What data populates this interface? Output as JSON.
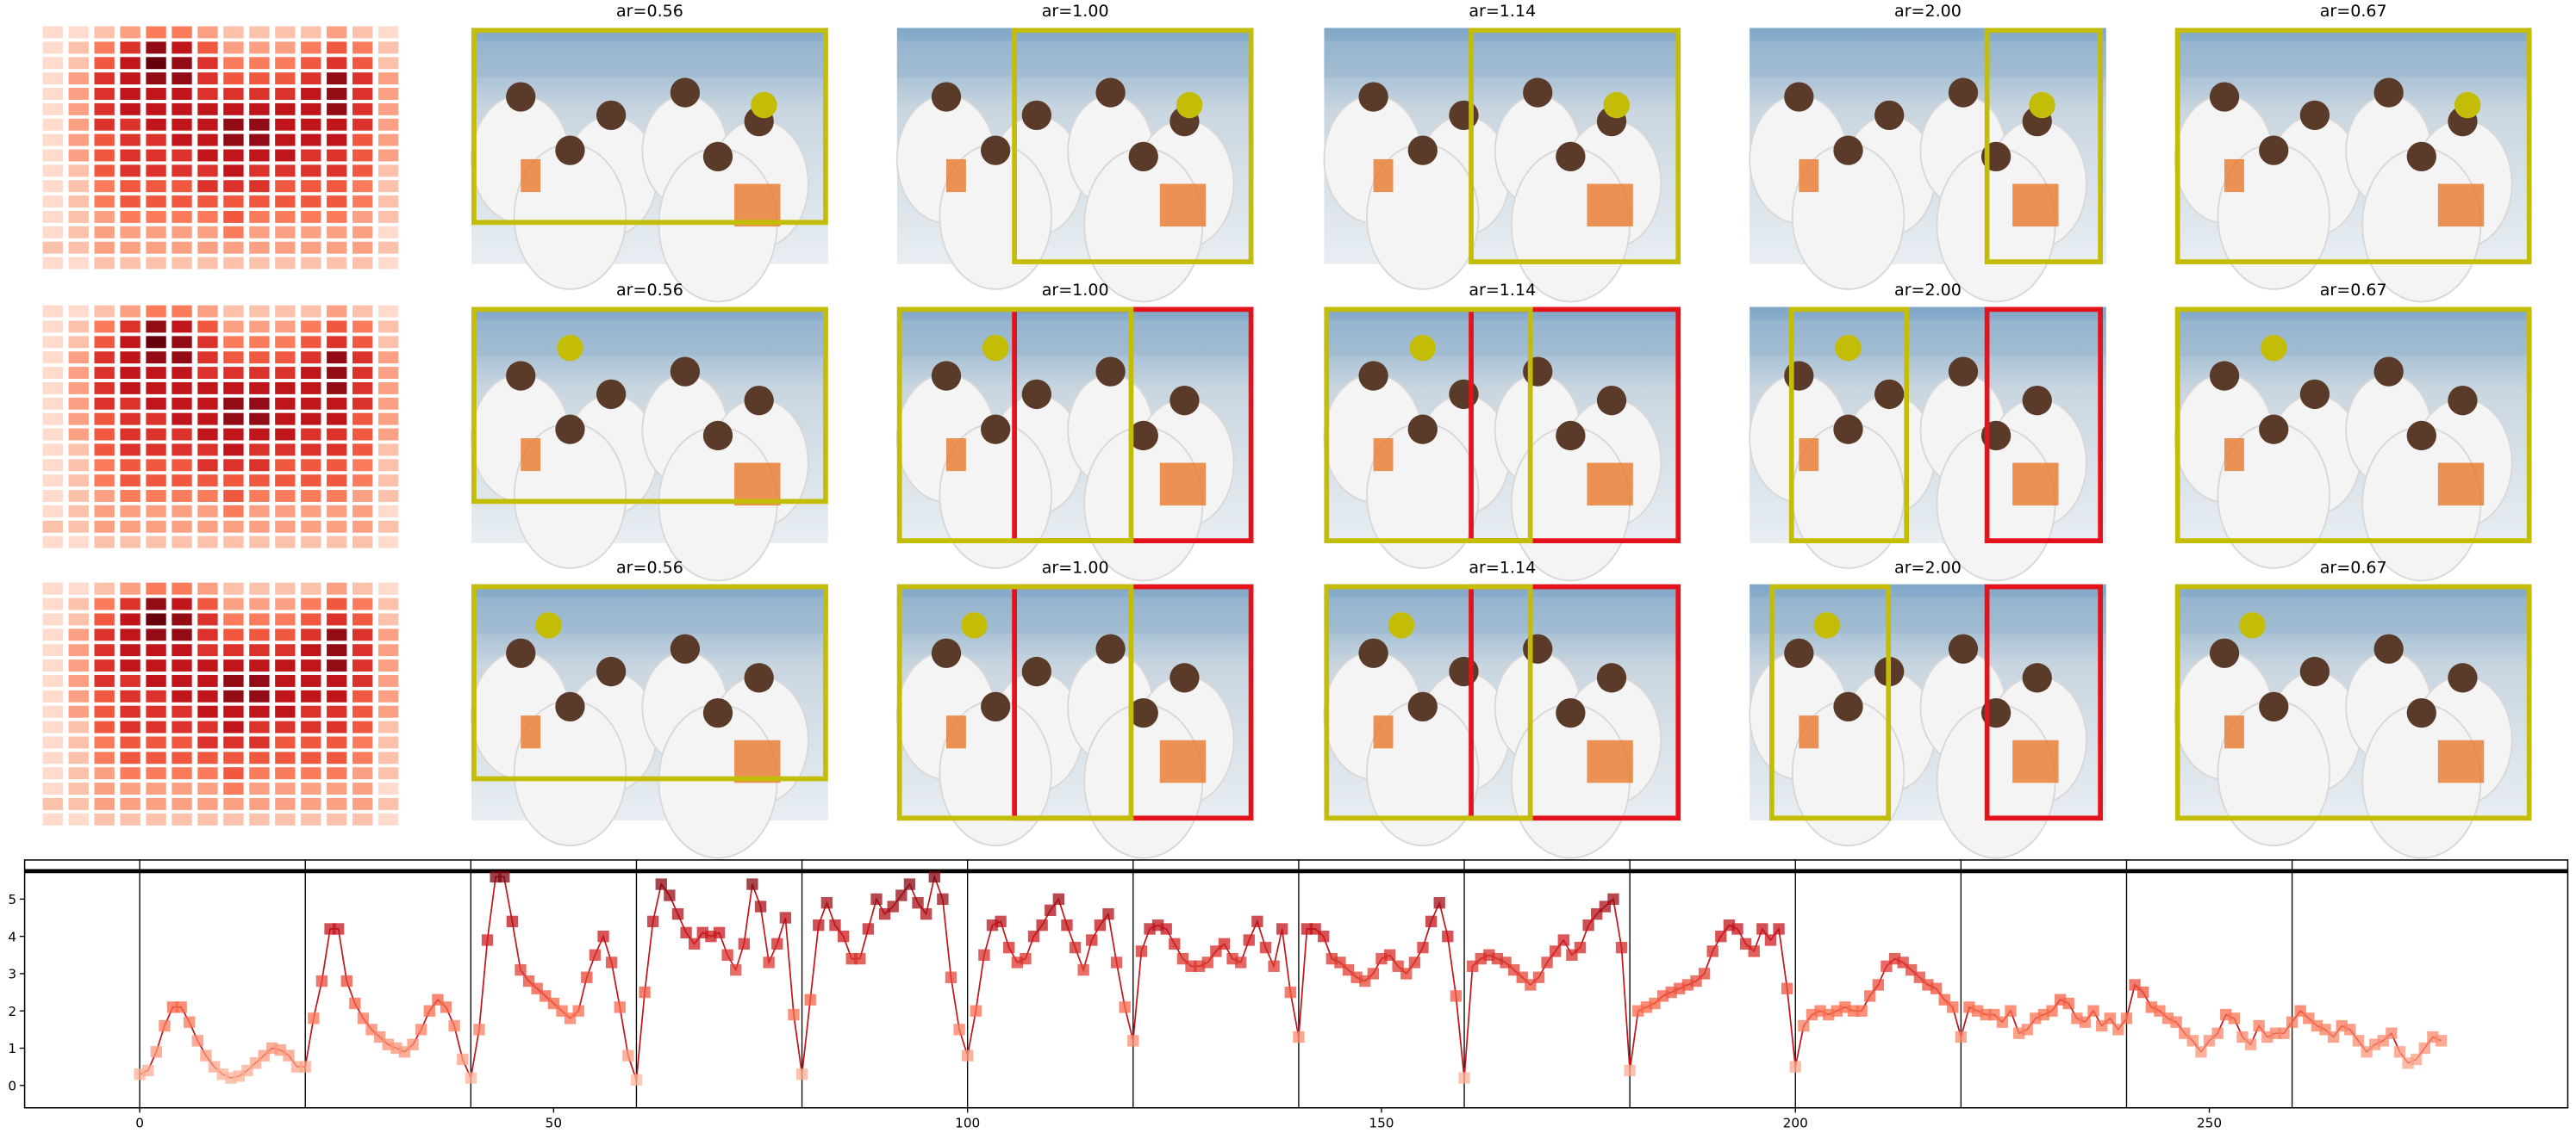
{
  "heatmap": {
    "colormap": "Reds",
    "values": [
      [
        1,
        1,
        2,
        3,
        4,
        4,
        3,
        2,
        2,
        2,
        2,
        3,
        2,
        1
      ],
      [
        1,
        2,
        4,
        6,
        8,
        7,
        5,
        3,
        3,
        3,
        4,
        5,
        4,
        2
      ],
      [
        1,
        2,
        5,
        7,
        9,
        8,
        6,
        4,
        4,
        4,
        5,
        6,
        5,
        2
      ],
      [
        1,
        3,
        6,
        7,
        8,
        8,
        6,
        5,
        5,
        5,
        6,
        8,
        6,
        3
      ],
      [
        1,
        3,
        6,
        7,
        7,
        7,
        6,
        6,
        6,
        6,
        7,
        8,
        6,
        3
      ],
      [
        1,
        3,
        6,
        7,
        7,
        7,
        7,
        7,
        7,
        7,
        7,
        8,
        6,
        3
      ],
      [
        1,
        3,
        6,
        6,
        7,
        7,
        7,
        8,
        8,
        7,
        7,
        7,
        6,
        3
      ],
      [
        1,
        3,
        5,
        6,
        6,
        7,
        7,
        8,
        8,
        7,
        7,
        7,
        5,
        3
      ],
      [
        1,
        3,
        5,
        6,
        6,
        6,
        7,
        7,
        7,
        7,
        6,
        6,
        5,
        3
      ],
      [
        1,
        2,
        5,
        6,
        6,
        6,
        6,
        7,
        6,
        6,
        6,
        6,
        5,
        2
      ],
      [
        1,
        2,
        4,
        5,
        5,
        5,
        6,
        6,
        6,
        5,
        5,
        5,
        4,
        2
      ],
      [
        1,
        2,
        4,
        5,
        5,
        5,
        5,
        5,
        5,
        5,
        5,
        5,
        4,
        2
      ],
      [
        1,
        2,
        3,
        4,
        4,
        4,
        4,
        5,
        4,
        4,
        4,
        4,
        3,
        2
      ],
      [
        1,
        2,
        3,
        3,
        3,
        3,
        3,
        4,
        3,
        3,
        3,
        3,
        3,
        1
      ],
      [
        2,
        2,
        3,
        3,
        3,
        3,
        3,
        3,
        3,
        3,
        3,
        3,
        3,
        2
      ],
      [
        1,
        1,
        2,
        2,
        2,
        2,
        2,
        2,
        2,
        2,
        2,
        2,
        2,
        1
      ]
    ]
  },
  "panel_titles": [
    "ar=0.56",
    "ar=1.00",
    "ar=1.14",
    "ar=2.00",
    "ar=0.67"
  ],
  "chart_data": {
    "type": "line",
    "colormap": "Reds",
    "line_color": "#c0161c",
    "xlim": [
      -13.9,
      293.3
    ],
    "ylim": [
      -0.6,
      6.05
    ],
    "xticks": [
      0,
      50,
      100,
      150,
      200,
      250
    ],
    "yticks": [
      0,
      1,
      2,
      3,
      4,
      5
    ],
    "vlines": [
      0,
      20,
      40,
      60,
      80,
      100,
      120,
      140,
      160,
      180,
      200,
      220,
      240,
      260
    ],
    "reference_line": 5.75,
    "x": [
      0,
      1,
      2,
      3,
      4,
      5,
      6,
      7,
      8,
      9,
      10,
      11,
      12,
      13,
      14,
      15,
      16,
      17,
      18,
      19,
      20,
      21,
      22,
      23,
      24,
      25,
      26,
      27,
      28,
      29,
      30,
      31,
      32,
      33,
      34,
      35,
      36,
      37,
      38,
      39,
      40,
      41,
      42,
      43,
      44,
      45,
      46,
      47,
      48,
      49,
      50,
      51,
      52,
      53,
      54,
      55,
      56,
      57,
      58,
      59,
      60,
      61,
      62,
      63,
      64,
      65,
      66,
      67,
      68,
      69,
      70,
      71,
      72,
      73,
      74,
      75,
      76,
      77,
      78,
      79,
      80,
      81,
      82,
      83,
      84,
      85,
      86,
      87,
      88,
      89,
      90,
      91,
      92,
      93,
      94,
      95,
      96,
      97,
      98,
      99,
      100,
      101,
      102,
      103,
      104,
      105,
      106,
      107,
      108,
      109,
      110,
      111,
      112,
      113,
      114,
      115,
      116,
      117,
      118,
      119,
      120,
      121,
      122,
      123,
      124,
      125,
      126,
      127,
      128,
      129,
      130,
      131,
      132,
      133,
      134,
      135,
      136,
      137,
      138,
      139,
      140,
      141,
      142,
      143,
      144,
      145,
      146,
      147,
      148,
      149,
      150,
      151,
      152,
      153,
      154,
      155,
      156,
      157,
      158,
      159,
      160,
      161,
      162,
      163,
      164,
      165,
      166,
      167,
      168,
      169,
      170,
      171,
      172,
      173,
      174,
      175,
      176,
      177,
      178,
      179,
      180,
      181,
      182,
      183,
      184,
      185,
      186,
      187,
      188,
      189,
      190,
      191,
      192,
      193,
      194,
      195,
      196,
      197,
      198,
      199,
      200,
      201,
      202,
      203,
      204,
      205,
      206,
      207,
      208,
      209,
      210,
      211,
      212,
      213,
      214,
      215,
      216,
      217,
      218,
      219,
      220,
      221,
      222,
      223,
      224,
      225,
      226,
      227,
      228,
      229,
      230,
      231,
      232,
      233,
      234,
      235,
      236,
      237,
      238,
      239,
      240,
      241,
      242,
      243,
      244,
      245,
      246,
      247,
      248,
      249,
      250,
      251,
      252,
      253,
      254,
      255,
      256,
      257,
      258,
      259,
      260,
      261,
      262,
      263,
      264,
      265,
      266,
      267,
      268,
      269,
      270,
      271,
      272,
      273,
      274,
      275,
      276,
      277,
      278
    ],
    "values": [
      0.3,
      0.4,
      0.9,
      1.6,
      2.1,
      2.1,
      1.7,
      1.2,
      0.8,
      0.5,
      0.3,
      0.2,
      0.25,
      0.4,
      0.6,
      0.8,
      1.0,
      0.95,
      0.8,
      0.5,
      0.5,
      1.8,
      2.8,
      4.2,
      4.2,
      2.8,
      2.2,
      1.8,
      1.5,
      1.3,
      1.1,
      1.0,
      0.9,
      1.1,
      1.5,
      2.0,
      2.3,
      2.1,
      1.6,
      0.7,
      0.2,
      1.5,
      3.9,
      5.6,
      5.6,
      4.4,
      3.1,
      2.8,
      2.6,
      2.4,
      2.2,
      2.0,
      1.8,
      2.0,
      2.9,
      3.5,
      4.0,
      3.3,
      2.1,
      0.8,
      0.15,
      2.5,
      4.4,
      5.4,
      5.1,
      4.6,
      4.1,
      3.8,
      4.1,
      4.0,
      4.1,
      3.5,
      3.1,
      3.8,
      5.4,
      4.8,
      3.3,
      3.8,
      4.5,
      1.9,
      0.3,
      2.3,
      4.3,
      4.9,
      4.3,
      4.0,
      3.4,
      3.4,
      4.2,
      5.0,
      4.6,
      4.8,
      5.1,
      5.4,
      4.9,
      4.6,
      5.6,
      5.0,
      2.9,
      1.5,
      0.8,
      2.0,
      3.5,
      4.3,
      4.4,
      3.7,
      3.3,
      3.4,
      4.0,
      4.3,
      4.7,
      5.0,
      4.3,
      3.7,
      3.1,
      3.9,
      4.3,
      4.6,
      3.3,
      2.1,
      1.2,
      3.6,
      4.2,
      4.3,
      4.2,
      3.8,
      3.4,
      3.2,
      3.2,
      3.3,
      3.6,
      3.8,
      3.4,
      3.3,
      3.9,
      4.4,
      3.7,
      3.2,
      4.2,
      2.5,
      1.3,
      4.2,
      4.2,
      4.0,
      3.4,
      3.3,
      3.1,
      2.9,
      2.8,
      3.0,
      3.4,
      3.5,
      3.2,
      3.0,
      3.3,
      3.7,
      4.4,
      4.9,
      4.0,
      2.4,
      0.2,
      3.2,
      3.4,
      3.5,
      3.4,
      3.3,
      3.1,
      2.9,
      2.7,
      2.9,
      3.3,
      3.6,
      3.9,
      3.5,
      3.7,
      4.3,
      4.6,
      4.8,
      5.0,
      3.7,
      0.4,
      2.0,
      2.1,
      2.2,
      2.4,
      2.5,
      2.6,
      2.7,
      2.8,
      3.0,
      3.6,
      4.0,
      4.3,
      4.2,
      3.8,
      3.6,
      4.2,
      3.9,
      4.2,
      2.6,
      0.5,
      1.6,
      1.9,
      2.0,
      1.9,
      2.0,
      2.1,
      2.0,
      2.0,
      2.4,
      2.7,
      3.2,
      3.4,
      3.3,
      3.1,
      2.9,
      2.7,
      2.6,
      2.3,
      2.1,
      1.3,
      2.1,
      2.0,
      1.9,
      1.9,
      1.7,
      2.0,
      1.4,
      1.5,
      1.8,
      1.9,
      2.0,
      2.3,
      2.2,
      1.8,
      1.7,
      2.0,
      1.6,
      1.8,
      1.5,
      1.8,
      2.7,
      2.5,
      2.1,
      2.0,
      1.8,
      1.7,
      1.4,
      1.2,
      0.9,
      1.2,
      1.4,
      1.9,
      1.8,
      1.3,
      1.1,
      1.6,
      1.3,
      1.4,
      1.4,
      1.7,
      2.0,
      1.8,
      1.6,
      1.5,
      1.3,
      1.6,
      1.5,
      1.2,
      0.9,
      1.1,
      1.2,
      1.4,
      0.9,
      0.6,
      0.7,
      1.0,
      1.3,
      1.2
    ]
  }
}
